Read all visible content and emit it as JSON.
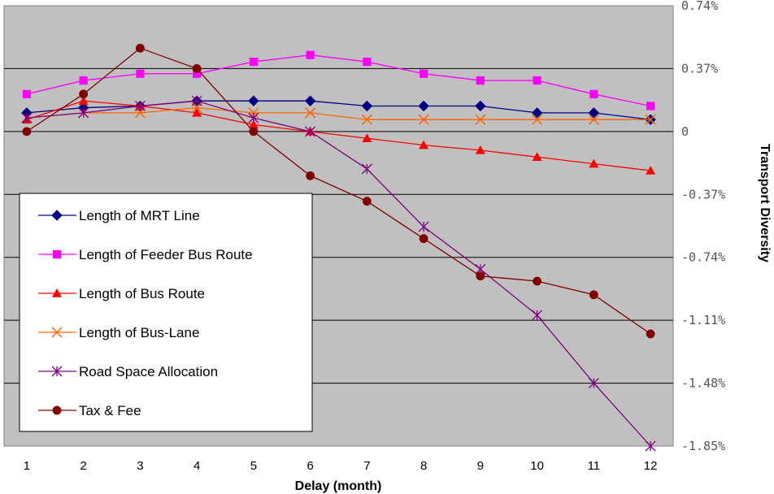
{
  "chart_data": {
    "type": "line",
    "title": "",
    "xlabel": "Delay (month)",
    "ylabel": "Transport Diversity",
    "x": [
      1,
      2,
      3,
      4,
      5,
      6,
      7,
      8,
      9,
      10,
      11,
      12
    ],
    "xlim": [
      0.6,
      12.4
    ],
    "ylim": [
      -1.85,
      0.74
    ],
    "y_ticks": [
      0.74,
      0.37,
      0,
      -0.37,
      -0.74,
      -1.11,
      -1.48,
      -1.85
    ],
    "y_tick_labels": [
      "0.74%",
      "0.37%",
      "0",
      "-0.37%",
      "-0.74%",
      "-1.11%",
      "-1.48%",
      "-1.85%"
    ],
    "y_axis_side": "right",
    "grid": "horizontal",
    "plot_background": "#c0c0c0",
    "legend_position": "lower-left",
    "series": [
      {
        "name": "Length of MRT Line",
        "color": "#000080",
        "marker": "diamond",
        "values": [
          0.11,
          0.14,
          0.15,
          0.18,
          0.18,
          0.18,
          0.15,
          0.15,
          0.15,
          0.11,
          0.11,
          0.07
        ]
      },
      {
        "name": "Length of Feeder Bus Route",
        "color": "#ff00ff",
        "marker": "square",
        "values": [
          0.22,
          0.3,
          0.34,
          0.34,
          0.41,
          0.45,
          0.41,
          0.34,
          0.3,
          0.3,
          0.22,
          0.15
        ]
      },
      {
        "name": "Length of Bus Route",
        "color": "#ff0000",
        "marker": "triangle",
        "values": [
          0.07,
          0.18,
          0.15,
          0.11,
          0.04,
          0.0,
          -0.04,
          -0.08,
          -0.11,
          -0.15,
          -0.19,
          -0.23
        ]
      },
      {
        "name": "Length of Bus-Lane",
        "color": "#ff6600",
        "marker": "x",
        "values": [
          0.08,
          0.11,
          0.11,
          0.14,
          0.11,
          0.11,
          0.07,
          0.07,
          0.07,
          0.07,
          0.07,
          0.07
        ]
      },
      {
        "name": "Road Space Allocation",
        "color": "#800080",
        "marker": "star",
        "values": [
          0.08,
          0.11,
          0.15,
          0.18,
          0.08,
          0.0,
          -0.22,
          -0.56,
          -0.81,
          -1.08,
          -1.48,
          -1.85
        ]
      },
      {
        "name": "Tax & Fee",
        "color": "#800000",
        "marker": "circle",
        "values": [
          0.0,
          0.22,
          0.49,
          0.37,
          0.0,
          -0.26,
          -0.41,
          -0.63,
          -0.85,
          -0.88,
          -0.96,
          -1.19
        ]
      }
    ]
  }
}
